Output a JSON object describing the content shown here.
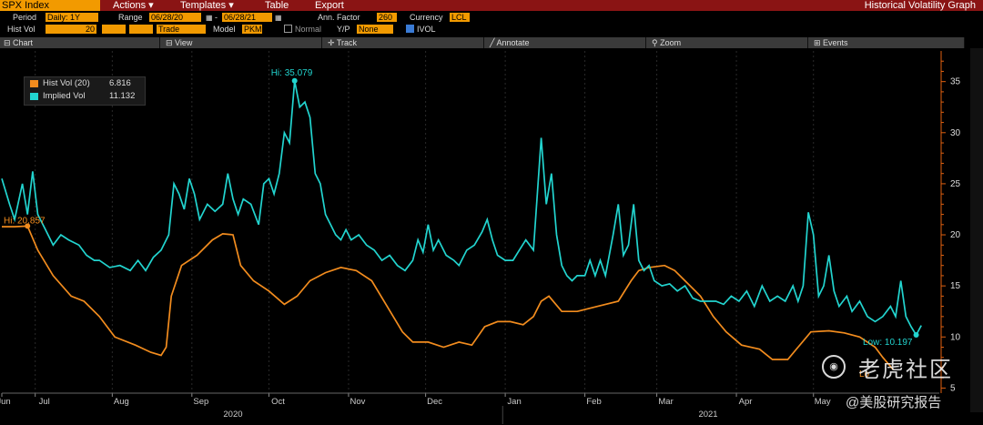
{
  "header": {
    "ticker": "SPX Index",
    "menus": [
      "Actions",
      "Templates",
      "Table",
      "Export"
    ],
    "title": "Historical Volatility Graph"
  },
  "params": {
    "period_label": "Period",
    "period_value": "Daily: 1Y",
    "range_label": "Range",
    "range_start": "06/28/20",
    "range_end": "06/28/21",
    "ann_factor_label": "Ann. Factor",
    "ann_factor_value": "260",
    "currency_label": "Currency",
    "currency_value": "LCL",
    "histvol_label": "Hist Vol",
    "histvol_value": "20",
    "histvol_type": "Trade",
    "model_label": "Model",
    "model_value": "PKM",
    "normal_label": "Normal",
    "yp_label": "Y/P",
    "yp_value": "None",
    "ivol_label": "IVOL"
  },
  "toolbar": [
    "Chart",
    "View",
    "Track",
    "Annotate",
    "Zoom",
    "Events"
  ],
  "colors": {
    "hist": "#f28c1e",
    "implied": "#22d4cf"
  },
  "legend": [
    {
      "label": "Hist Vol (20)",
      "value": "6.816"
    },
    {
      "label": "Implied Vol",
      "value": "11.132"
    }
  ],
  "annotations": {
    "hist_hi": "Hi: 20.857",
    "implied_hi": "Hi: 35.079",
    "implied_low": "Low: 10.197",
    "hist_low_partial": "Lo"
  },
  "watermark": {
    "name": "老虎社区",
    "sub": "@美股研究报告"
  },
  "chart_data": {
    "type": "line",
    "ylim": [
      4.5,
      38
    ],
    "yticks": [
      5,
      10,
      15,
      20,
      25,
      30,
      35
    ],
    "xlim": [
      0,
      365
    ],
    "month_labels": [
      {
        "label": "Jun",
        "x": 0
      },
      {
        "label": "Jul",
        "x": 13
      },
      {
        "label": "Aug",
        "x": 43
      },
      {
        "label": "Sep",
        "x": 74
      },
      {
        "label": "Oct",
        "x": 104
      },
      {
        "label": "Nov",
        "x": 135
      },
      {
        "label": "Dec",
        "x": 165
      },
      {
        "label": "Jan",
        "x": 196
      },
      {
        "label": "Feb",
        "x": 227
      },
      {
        "label": "Mar",
        "x": 255
      },
      {
        "label": "Apr",
        "x": 286
      },
      {
        "label": "May",
        "x": 316
      }
    ],
    "year_labels": [
      {
        "label": "2020",
        "x": 90
      },
      {
        "label": "2021",
        "x": 275
      }
    ],
    "series": [
      {
        "name": "Hist Vol (20)",
        "points": [
          [
            0,
            20.8
          ],
          [
            5,
            20.8
          ],
          [
            10,
            20.857
          ],
          [
            14,
            18.5
          ],
          [
            20,
            16
          ],
          [
            27,
            14
          ],
          [
            32,
            13.5
          ],
          [
            38,
            12
          ],
          [
            44,
            10
          ],
          [
            52,
            9.2
          ],
          [
            58,
            8.5
          ],
          [
            62,
            8.2
          ],
          [
            64,
            9
          ],
          [
            66,
            14
          ],
          [
            70,
            17
          ],
          [
            76,
            18
          ],
          [
            82,
            19.5
          ],
          [
            86,
            20.1
          ],
          [
            90,
            20
          ],
          [
            93,
            17
          ],
          [
            98,
            15.5
          ],
          [
            104,
            14.5
          ],
          [
            110,
            13.2
          ],
          [
            115,
            14
          ],
          [
            120,
            15.5
          ],
          [
            126,
            16.3
          ],
          [
            132,
            16.8
          ],
          [
            138,
            16.5
          ],
          [
            144,
            15.5
          ],
          [
            150,
            13
          ],
          [
            156,
            10.5
          ],
          [
            160,
            9.5
          ],
          [
            166,
            9.5
          ],
          [
            172,
            9
          ],
          [
            178,
            9.5
          ],
          [
            183,
            9.2
          ],
          [
            188,
            11
          ],
          [
            193,
            11.5
          ],
          [
            198,
            11.5
          ],
          [
            203,
            11.2
          ],
          [
            207,
            12
          ],
          [
            210,
            13.5
          ],
          [
            213,
            14
          ],
          [
            218,
            12.5
          ],
          [
            224,
            12.5
          ],
          [
            232,
            13
          ],
          [
            240,
            13.5
          ],
          [
            245,
            15.5
          ],
          [
            248,
            16.5
          ],
          [
            252,
            16.8
          ],
          [
            258,
            17
          ],
          [
            262,
            16.5
          ],
          [
            266,
            15.5
          ],
          [
            272,
            14
          ],
          [
            277,
            12
          ],
          [
            282,
            10.5
          ],
          [
            288,
            9.2
          ],
          [
            295,
            8.8
          ],
          [
            300,
            7.8
          ],
          [
            306,
            7.8
          ],
          [
            310,
            9
          ],
          [
            315,
            10.5
          ],
          [
            322,
            10.6
          ],
          [
            328,
            10.4
          ],
          [
            334,
            10
          ],
          [
            340,
            9
          ],
          [
            343,
            8
          ],
          [
            347,
            6.816
          ]
        ]
      },
      {
        "name": "Implied Vol",
        "points": [
          [
            0,
            25.5
          ],
          [
            3,
            23
          ],
          [
            5,
            21.5
          ],
          [
            8,
            25
          ],
          [
            10,
            22
          ],
          [
            12,
            26.2
          ],
          [
            14,
            22
          ],
          [
            17,
            20.5
          ],
          [
            20,
            19
          ],
          [
            23,
            20
          ],
          [
            26,
            19.5
          ],
          [
            30,
            19
          ],
          [
            33,
            18
          ],
          [
            36,
            17.5
          ],
          [
            38,
            17.5
          ],
          [
            42,
            16.8
          ],
          [
            46,
            17
          ],
          [
            50,
            16.5
          ],
          [
            53,
            17.5
          ],
          [
            56,
            16.5
          ],
          [
            59,
            17.8
          ],
          [
            62,
            18.5
          ],
          [
            65,
            20
          ],
          [
            67,
            25
          ],
          [
            69,
            24
          ],
          [
            71,
            22.5
          ],
          [
            73,
            25.5
          ],
          [
            75,
            24
          ],
          [
            77,
            21.5
          ],
          [
            80,
            23
          ],
          [
            83,
            22.3
          ],
          [
            86,
            23
          ],
          [
            88,
            26
          ],
          [
            90,
            23.5
          ],
          [
            92,
            22
          ],
          [
            94,
            23.5
          ],
          [
            97,
            23
          ],
          [
            100,
            21
          ],
          [
            102,
            25
          ],
          [
            104,
            25.5
          ],
          [
            106,
            24
          ],
          [
            108,
            26
          ],
          [
            110,
            30
          ],
          [
            112,
            29
          ],
          [
            114,
            35.079
          ],
          [
            116,
            32.5
          ],
          [
            118,
            33
          ],
          [
            120,
            31.5
          ],
          [
            122,
            26
          ],
          [
            124,
            25
          ],
          [
            126,
            22
          ],
          [
            128,
            21
          ],
          [
            130,
            20
          ],
          [
            132,
            19.5
          ],
          [
            134,
            20.5
          ],
          [
            136,
            19.5
          ],
          [
            139,
            20
          ],
          [
            142,
            19
          ],
          [
            145,
            18.5
          ],
          [
            148,
            17.5
          ],
          [
            151,
            18
          ],
          [
            154,
            17
          ],
          [
            157,
            16.5
          ],
          [
            160,
            17.5
          ],
          [
            162,
            19.5
          ],
          [
            164,
            18.3
          ],
          [
            166,
            21
          ],
          [
            168,
            18.5
          ],
          [
            170,
            19.5
          ],
          [
            173,
            18
          ],
          [
            176,
            17.5
          ],
          [
            178,
            17
          ],
          [
            181,
            18.5
          ],
          [
            184,
            19
          ],
          [
            187,
            20.3
          ],
          [
            189,
            21.5
          ],
          [
            191,
            19.5
          ],
          [
            193,
            18
          ],
          [
            196,
            17.5
          ],
          [
            199,
            17.5
          ],
          [
            201,
            18.3
          ],
          [
            204,
            19.5
          ],
          [
            207,
            18.5
          ],
          [
            210,
            29.5
          ],
          [
            212,
            23
          ],
          [
            214,
            26
          ],
          [
            216,
            20
          ],
          [
            218,
            17
          ],
          [
            220,
            16
          ],
          [
            222,
            15.5
          ],
          [
            224,
            16
          ],
          [
            227,
            16
          ],
          [
            229,
            17.5
          ],
          [
            231,
            16
          ],
          [
            233,
            17.5
          ],
          [
            235,
            16
          ],
          [
            238,
            20
          ],
          [
            240,
            23
          ],
          [
            242,
            18
          ],
          [
            244,
            19
          ],
          [
            246,
            23
          ],
          [
            248,
            17.5
          ],
          [
            250,
            16.5
          ],
          [
            252,
            17
          ],
          [
            254,
            15.5
          ],
          [
            257,
            15
          ],
          [
            260,
            15.2
          ],
          [
            263,
            14.5
          ],
          [
            266,
            15
          ],
          [
            269,
            13.8
          ],
          [
            272,
            13.5
          ],
          [
            275,
            13.5
          ],
          [
            278,
            13.5
          ],
          [
            281,
            13.2
          ],
          [
            284,
            14
          ],
          [
            287,
            13.5
          ],
          [
            290,
            14.5
          ],
          [
            293,
            13
          ],
          [
            296,
            15
          ],
          [
            299,
            13.5
          ],
          [
            302,
            14
          ],
          [
            305,
            13.5
          ],
          [
            308,
            15
          ],
          [
            310,
            13.5
          ],
          [
            312,
            15
          ],
          [
            314,
            22.2
          ],
          [
            316,
            20
          ],
          [
            318,
            14
          ],
          [
            320,
            15
          ],
          [
            322,
            18
          ],
          [
            324,
            14.5
          ],
          [
            326,
            13
          ],
          [
            329,
            14
          ],
          [
            331,
            12.5
          ],
          [
            334,
            13.5
          ],
          [
            337,
            12
          ],
          [
            340,
            11.5
          ],
          [
            343,
            12
          ],
          [
            346,
            13
          ],
          [
            348,
            12
          ],
          [
            350,
            15.5
          ],
          [
            352,
            12
          ],
          [
            354,
            11
          ],
          [
            356,
            10.197
          ],
          [
            358,
            11.132
          ]
        ]
      }
    ]
  }
}
